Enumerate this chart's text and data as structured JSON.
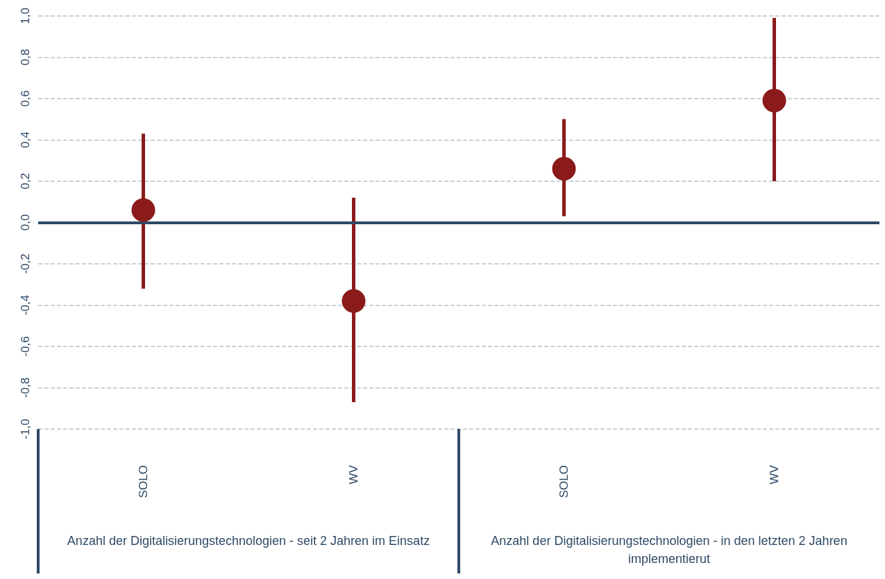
{
  "chart_data": {
    "type": "scatter",
    "categories": [
      "SOLO",
      "WV",
      "SOLO",
      "WV"
    ],
    "series": [
      {
        "color": "#8b1a1a",
        "values": [
          0.06,
          -0.38,
          0.26,
          0.59
        ],
        "errors": [
          [
            -0.32,
            0.43
          ],
          [
            -0.87,
            0.12
          ],
          [
            0.03,
            0.5
          ],
          [
            0.2,
            0.99
          ]
        ]
      }
    ],
    "ylim": [
      -1,
      1
    ],
    "yticks": [
      {
        "value": -1,
        "label": "-1,0"
      },
      {
        "value": -0.8,
        "label": "-0,8"
      },
      {
        "value": -0.6,
        "label": "-0,6"
      },
      {
        "value": -0.4,
        "label": "-0,4"
      },
      {
        "value": -0.2,
        "label": "-0,2"
      },
      {
        "value": 0,
        "label": "0,0"
      },
      {
        "value": 0.2,
        "label": "0,2"
      },
      {
        "value": 0.4,
        "label": "0,4"
      },
      {
        "value": 0.6,
        "label": "0,6"
      },
      {
        "value": 0.8,
        "label": "0,8"
      },
      {
        "value": 1,
        "label": "1,0"
      }
    ],
    "grid": "y",
    "marker": "circle",
    "ref_lines": [
      {
        "axis": "y",
        "value": 0,
        "label": null,
        "color": "#2e4a66"
      }
    ],
    "annotations": [
      "Anzahl der Digitalisierungstechnologien - seit 2 Jahren im Einsatz",
      "Anzahl der Digitalisierungstechnologien - in den letzten 2 Jahren implementierut"
    ]
  }
}
